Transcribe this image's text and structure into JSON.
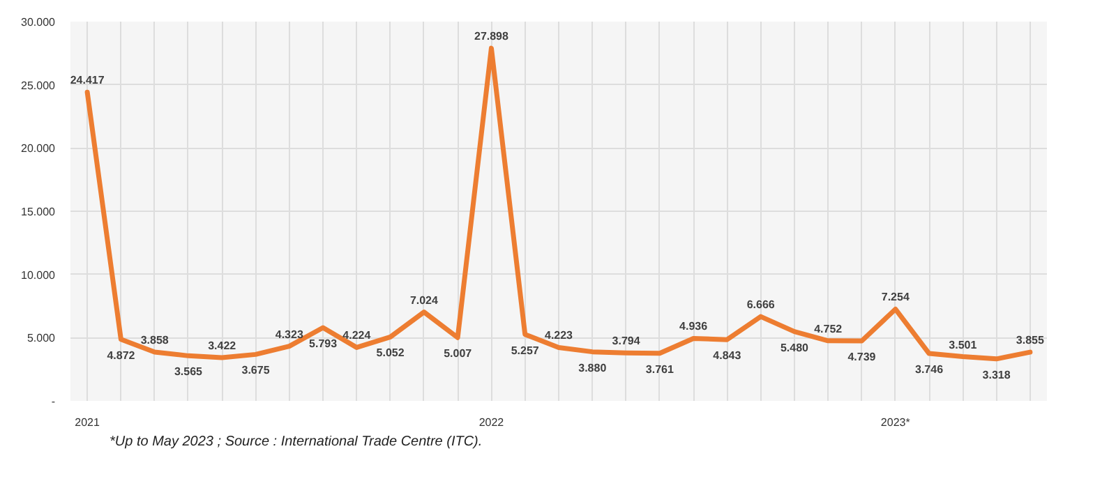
{
  "chart_data": {
    "type": "line",
    "categories": [
      "2021",
      null,
      null,
      null,
      null,
      null,
      null,
      null,
      null,
      null,
      null,
      null,
      "2022",
      null,
      null,
      null,
      null,
      null,
      null,
      null,
      null,
      null,
      null,
      null,
      "2023*",
      null,
      null,
      null,
      null
    ],
    "series": [
      {
        "color": "#ed7d31",
        "values": [
          24417,
          4872,
          3858,
          3565,
          3422,
          3675,
          4323,
          5793,
          4224,
          5052,
          7024,
          5007,
          27898,
          5257,
          4223,
          3880,
          3794,
          3761,
          4936,
          4843,
          6666,
          5480,
          4752,
          4739,
          7254,
          3746,
          3501,
          3318,
          3855
        ],
        "value_labels": [
          "24.417",
          "4.872",
          "3.858",
          "3.565",
          "3.422",
          "3.675",
          "4.323",
          "5.793",
          "4.224",
          "5.052",
          "7.024",
          "5.007",
          "27.898",
          "5.257",
          "4.223",
          "3.880",
          "3.794",
          "3.761",
          "4.936",
          "4.843",
          "6.666",
          "5.480",
          "4.752",
          "4.739",
          "7.254",
          "3.746",
          "3.501",
          "3.318",
          "3.855"
        ]
      }
    ],
    "ylim": [
      0,
      30000
    ],
    "yticks": [
      {
        "value": 0,
        "label": "-"
      },
      {
        "value": 5000,
        "label": "5.000"
      },
      {
        "value": 10000,
        "label": "10.000"
      },
      {
        "value": 15000,
        "label": "15.000"
      },
      {
        "value": 20000,
        "label": "20.000"
      },
      {
        "value": 25000,
        "label": "25.000"
      },
      {
        "value": 30000,
        "label": "30.000"
      }
    ],
    "grid": true,
    "marker": "none",
    "line_style": "solid",
    "annotations": [
      "*Up to May 2023 ; Source : International Trade Centre (ITC)."
    ]
  }
}
